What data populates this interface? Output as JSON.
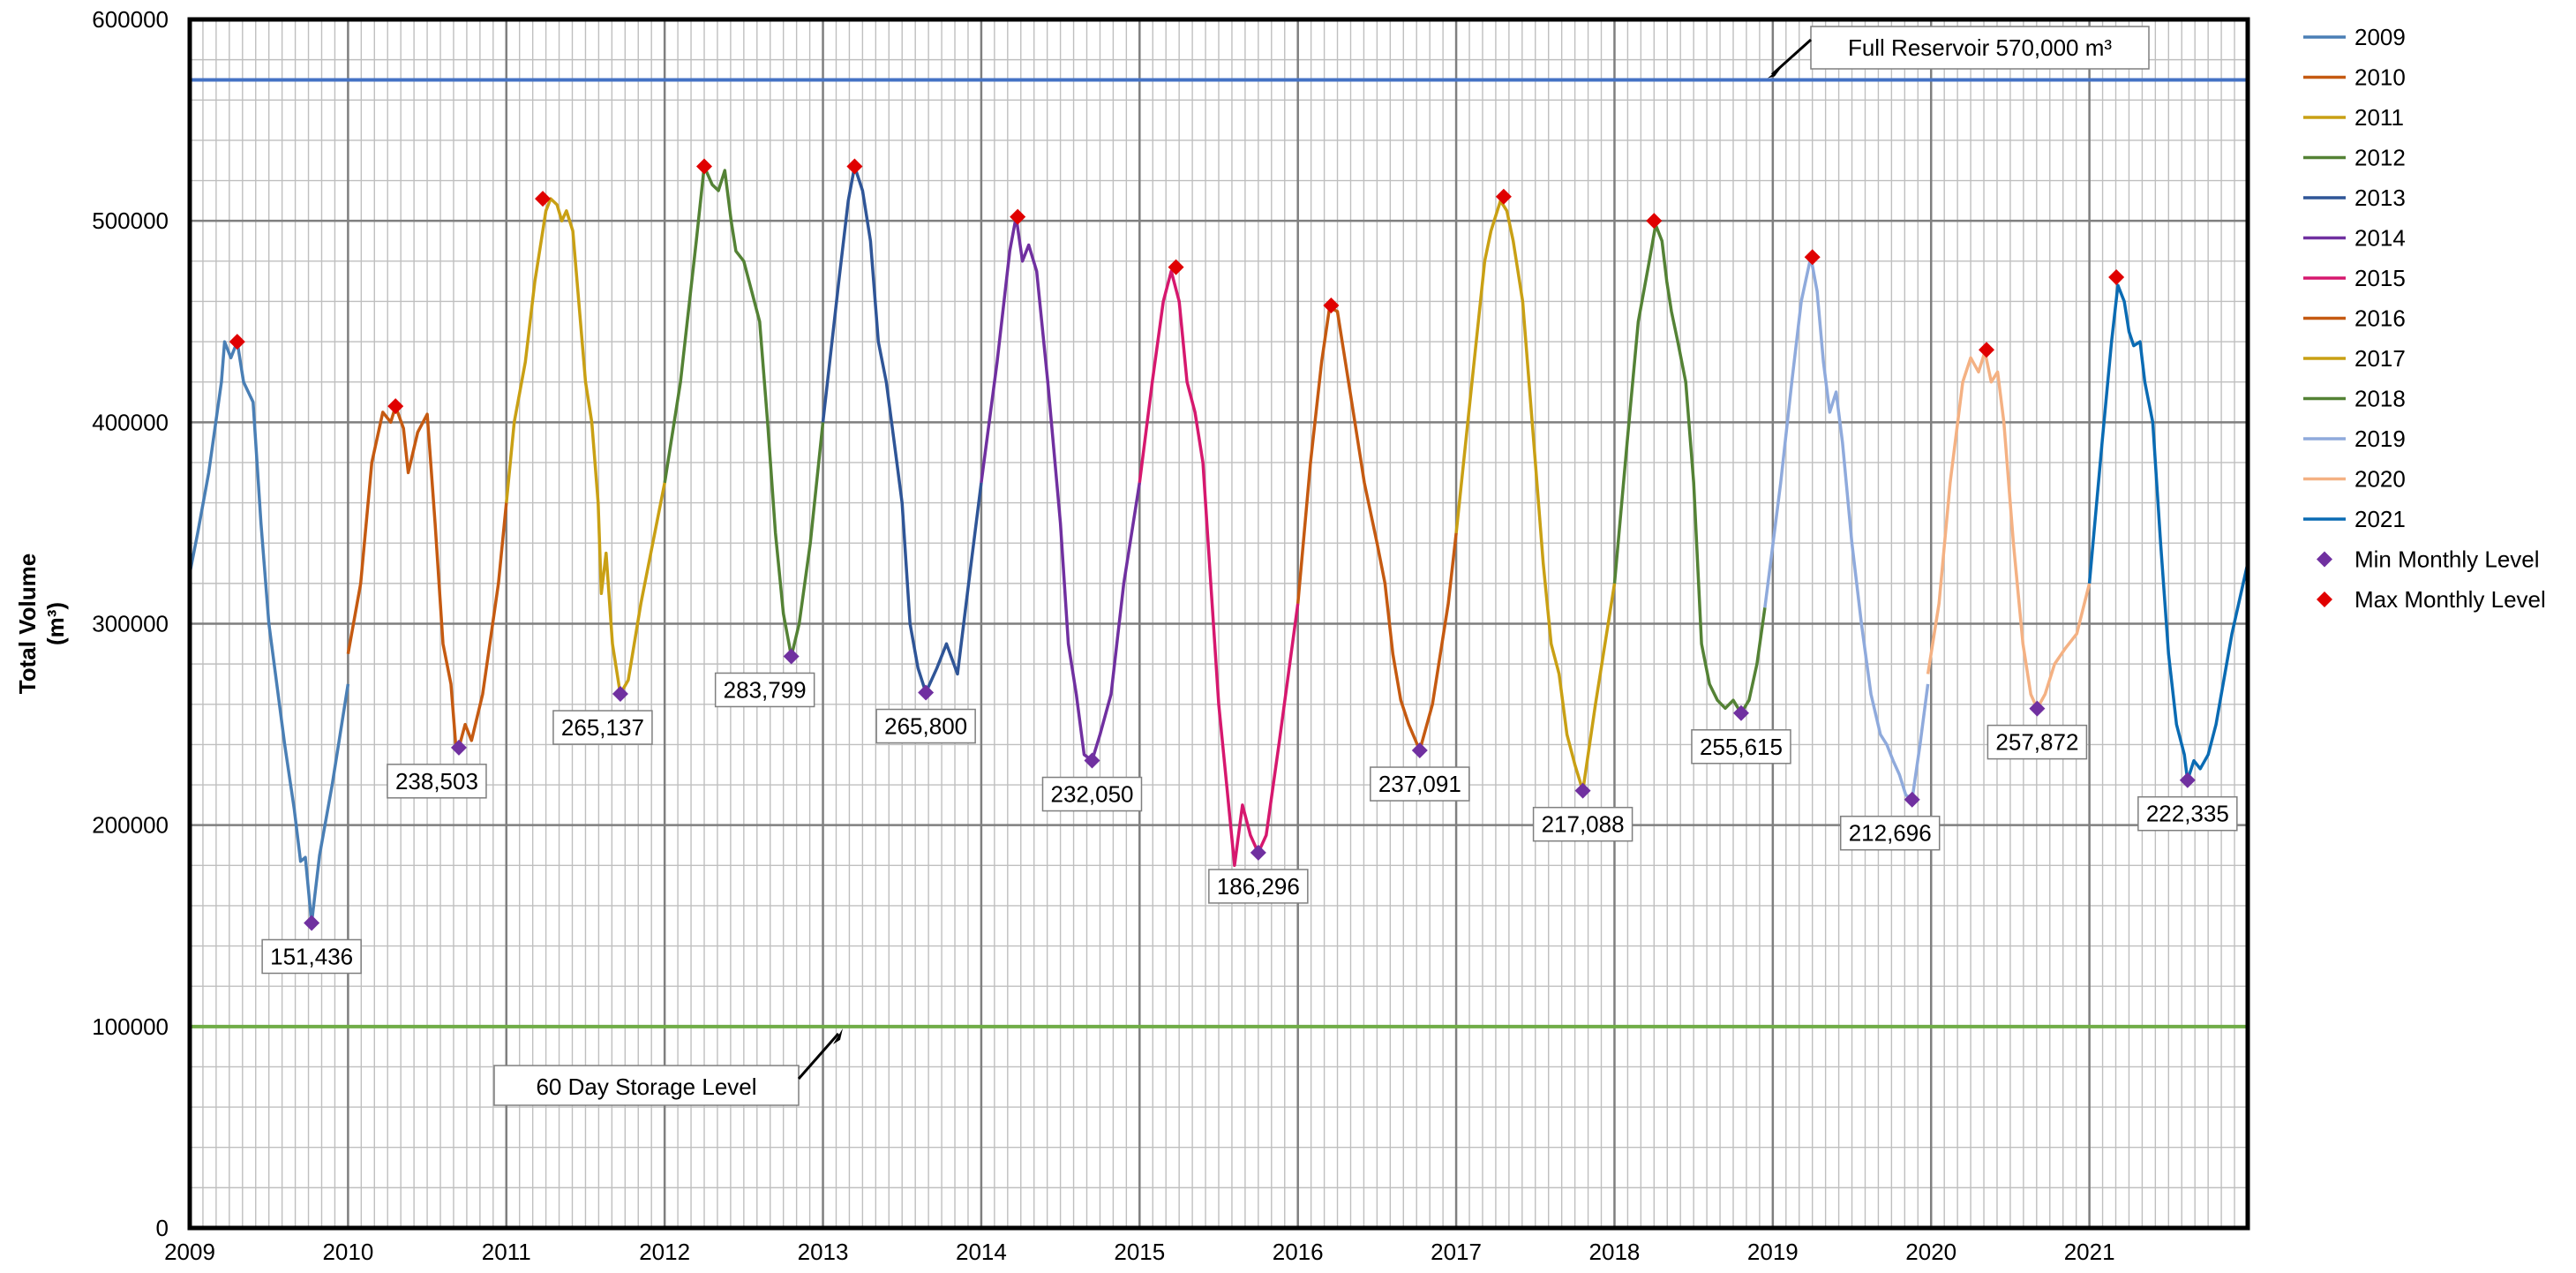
{
  "chart_data": {
    "type": "line",
    "title": "",
    "xlabel": "",
    "ylabel_line1": "Total Volume",
    "ylabel_line2": "(m³)",
    "xlim": [
      2009,
      2022
    ],
    "ylim": [
      0,
      600000
    ],
    "x_ticks": [
      2009,
      2010,
      2011,
      2012,
      2013,
      2014,
      2015,
      2016,
      2017,
      2018,
      2019,
      2020,
      2021
    ],
    "y_ticks": [
      0,
      100000,
      200000,
      300000,
      400000,
      500000,
      600000
    ],
    "grid": true,
    "legend_position": "right",
    "series": [
      {
        "name": "2009",
        "color": "#4a7fb5",
        "points": [
          [
            2009.0,
            325000
          ],
          [
            2009.05,
            345000
          ],
          [
            2009.12,
            375000
          ],
          [
            2009.2,
            420000
          ],
          [
            2009.22,
            440000
          ],
          [
            2009.26,
            432000
          ],
          [
            2009.3,
            440000
          ],
          [
            2009.34,
            420000
          ],
          [
            2009.4,
            410000
          ],
          [
            2009.45,
            350000
          ],
          [
            2009.5,
            300000
          ],
          [
            2009.6,
            240000
          ],
          [
            2009.66,
            208000
          ],
          [
            2009.7,
            182000
          ],
          [
            2009.73,
            184000
          ],
          [
            2009.77,
            151436
          ],
          [
            2009.82,
            185000
          ],
          [
            2009.9,
            220000
          ],
          [
            2010.0,
            270000
          ]
        ]
      },
      {
        "name": "2010",
        "color": "#c55a11",
        "points": [
          [
            2010.0,
            285000
          ],
          [
            2010.08,
            320000
          ],
          [
            2010.15,
            380000
          ],
          [
            2010.22,
            405000
          ],
          [
            2010.27,
            400000
          ],
          [
            2010.3,
            408000
          ],
          [
            2010.35,
            397000
          ],
          [
            2010.38,
            375000
          ],
          [
            2010.44,
            395000
          ],
          [
            2010.5,
            404000
          ],
          [
            2010.55,
            350000
          ],
          [
            2010.6,
            290000
          ],
          [
            2010.65,
            270000
          ],
          [
            2010.68,
            240000
          ],
          [
            2010.7,
            238503
          ],
          [
            2010.74,
            250000
          ],
          [
            2010.78,
            242000
          ],
          [
            2010.85,
            265000
          ],
          [
            2010.95,
            320000
          ],
          [
            2011.0,
            360000
          ]
        ]
      },
      {
        "name": "2011",
        "color": "#c9a014",
        "points": [
          [
            2011.0,
            360000
          ],
          [
            2011.05,
            400000
          ],
          [
            2011.12,
            430000
          ],
          [
            2011.18,
            470000
          ],
          [
            2011.25,
            505000
          ],
          [
            2011.28,
            511000
          ],
          [
            2011.32,
            508000
          ],
          [
            2011.35,
            500000
          ],
          [
            2011.38,
            505000
          ],
          [
            2011.42,
            495000
          ],
          [
            2011.5,
            420000
          ],
          [
            2011.54,
            400000
          ],
          [
            2011.58,
            360000
          ],
          [
            2011.6,
            315000
          ],
          [
            2011.63,
            335000
          ],
          [
            2011.67,
            290000
          ],
          [
            2011.72,
            265137
          ],
          [
            2011.77,
            272000
          ],
          [
            2011.85,
            310000
          ],
          [
            2011.95,
            350000
          ],
          [
            2012.0,
            370000
          ]
        ]
      },
      {
        "name": "2012",
        "color": "#548235",
        "points": [
          [
            2012.0,
            370000
          ],
          [
            2012.1,
            420000
          ],
          [
            2012.2,
            490000
          ],
          [
            2012.25,
            527000
          ],
          [
            2012.3,
            518000
          ],
          [
            2012.34,
            515000
          ],
          [
            2012.38,
            525000
          ],
          [
            2012.42,
            500000
          ],
          [
            2012.45,
            485000
          ],
          [
            2012.5,
            480000
          ],
          [
            2012.55,
            465000
          ],
          [
            2012.6,
            450000
          ],
          [
            2012.65,
            400000
          ],
          [
            2012.7,
            345000
          ],
          [
            2012.75,
            305000
          ],
          [
            2012.8,
            283799
          ],
          [
            2012.85,
            300000
          ],
          [
            2012.92,
            340000
          ],
          [
            2013.0,
            400000
          ]
        ]
      },
      {
        "name": "2013",
        "color": "#2f5597",
        "points": [
          [
            2013.0,
            400000
          ],
          [
            2013.1,
            470000
          ],
          [
            2013.16,
            510000
          ],
          [
            2013.2,
            527000
          ],
          [
            2013.25,
            515000
          ],
          [
            2013.3,
            490000
          ],
          [
            2013.35,
            440000
          ],
          [
            2013.4,
            420000
          ],
          [
            2013.45,
            390000
          ],
          [
            2013.5,
            360000
          ],
          [
            2013.55,
            300000
          ],
          [
            2013.6,
            278000
          ],
          [
            2013.65,
            265800
          ],
          [
            2013.72,
            278000
          ],
          [
            2013.78,
            290000
          ],
          [
            2013.85,
            275000
          ],
          [
            2013.92,
            320000
          ],
          [
            2014.0,
            370000
          ]
        ]
      },
      {
        "name": "2014",
        "color": "#7030a0",
        "points": [
          [
            2014.0,
            370000
          ],
          [
            2014.1,
            430000
          ],
          [
            2014.18,
            485000
          ],
          [
            2014.22,
            502000
          ],
          [
            2014.26,
            480000
          ],
          [
            2014.3,
            488000
          ],
          [
            2014.35,
            475000
          ],
          [
            2014.42,
            420000
          ],
          [
            2014.5,
            350000
          ],
          [
            2014.55,
            290000
          ],
          [
            2014.6,
            265000
          ],
          [
            2014.65,
            235000
          ],
          [
            2014.7,
            232050
          ],
          [
            2014.75,
            245000
          ],
          [
            2014.82,
            265000
          ],
          [
            2014.9,
            320000
          ],
          [
            2015.0,
            370000
          ]
        ]
      },
      {
        "name": "2015",
        "color": "#d6186e",
        "points": [
          [
            2015.0,
            370000
          ],
          [
            2015.08,
            420000
          ],
          [
            2015.15,
            460000
          ],
          [
            2015.2,
            475000
          ],
          [
            2015.25,
            460000
          ],
          [
            2015.3,
            420000
          ],
          [
            2015.35,
            405000
          ],
          [
            2015.4,
            380000
          ],
          [
            2015.45,
            320000
          ],
          [
            2015.5,
            260000
          ],
          [
            2015.55,
            220000
          ],
          [
            2015.6,
            180000
          ],
          [
            2015.65,
            210000
          ],
          [
            2015.7,
            195000
          ],
          [
            2015.75,
            186296
          ],
          [
            2015.8,
            195000
          ],
          [
            2015.88,
            240000
          ],
          [
            2016.0,
            310000
          ]
        ]
      },
      {
        "name": "2016",
        "color": "#c55a11",
        "points": [
          [
            2016.0,
            310000
          ],
          [
            2016.08,
            380000
          ],
          [
            2016.15,
            430000
          ],
          [
            2016.2,
            457000
          ],
          [
            2016.25,
            455000
          ],
          [
            2016.3,
            430000
          ],
          [
            2016.35,
            405000
          ],
          [
            2016.42,
            370000
          ],
          [
            2016.5,
            340000
          ],
          [
            2016.55,
            320000
          ],
          [
            2016.6,
            285000
          ],
          [
            2016.65,
            262000
          ],
          [
            2016.7,
            250000
          ],
          [
            2016.77,
            237091
          ],
          [
            2016.85,
            260000
          ],
          [
            2016.95,
            310000
          ],
          [
            2017.0,
            345000
          ]
        ]
      },
      {
        "name": "2017",
        "color": "#c9a014",
        "points": [
          [
            2017.0,
            345000
          ],
          [
            2017.1,
            420000
          ],
          [
            2017.18,
            480000
          ],
          [
            2017.22,
            495000
          ],
          [
            2017.28,
            510000
          ],
          [
            2017.32,
            505000
          ],
          [
            2017.36,
            490000
          ],
          [
            2017.42,
            460000
          ],
          [
            2017.5,
            380000
          ],
          [
            2017.55,
            330000
          ],
          [
            2017.6,
            290000
          ],
          [
            2017.65,
            275000
          ],
          [
            2017.7,
            245000
          ],
          [
            2017.75,
            230000
          ],
          [
            2017.8,
            217088
          ],
          [
            2017.88,
            260000
          ],
          [
            2018.0,
            320000
          ]
        ]
      },
      {
        "name": "2018",
        "color": "#548235",
        "points": [
          [
            2018.0,
            320000
          ],
          [
            2018.08,
            390000
          ],
          [
            2018.15,
            450000
          ],
          [
            2018.22,
            480000
          ],
          [
            2018.26,
            498000
          ],
          [
            2018.3,
            490000
          ],
          [
            2018.33,
            470000
          ],
          [
            2018.36,
            455000
          ],
          [
            2018.4,
            440000
          ],
          [
            2018.45,
            420000
          ],
          [
            2018.5,
            370000
          ],
          [
            2018.55,
            290000
          ],
          [
            2018.6,
            270000
          ],
          [
            2018.65,
            262000
          ],
          [
            2018.7,
            258000
          ],
          [
            2018.75,
            262000
          ],
          [
            2018.8,
            255615
          ],
          [
            2018.85,
            262000
          ],
          [
            2018.9,
            280000
          ],
          [
            2018.95,
            308000
          ]
        ]
      },
      {
        "name": "2019",
        "color": "#8faadc",
        "points": [
          [
            2018.95,
            308000
          ],
          [
            2019.05,
            370000
          ],
          [
            2019.12,
            420000
          ],
          [
            2019.18,
            460000
          ],
          [
            2019.24,
            482000
          ],
          [
            2019.28,
            465000
          ],
          [
            2019.32,
            430000
          ],
          [
            2019.36,
            405000
          ],
          [
            2019.4,
            415000
          ],
          [
            2019.44,
            390000
          ],
          [
            2019.5,
            340000
          ],
          [
            2019.56,
            300000
          ],
          [
            2019.62,
            265000
          ],
          [
            2019.68,
            245000
          ],
          [
            2019.72,
            240000
          ],
          [
            2019.76,
            232000
          ],
          [
            2019.8,
            225000
          ],
          [
            2019.84,
            215000
          ],
          [
            2019.88,
            212696
          ],
          [
            2019.93,
            240000
          ],
          [
            2019.98,
            270000
          ]
        ]
      },
      {
        "name": "2020",
        "color": "#f4b183",
        "points": [
          [
            2019.98,
            275000
          ],
          [
            2020.05,
            310000
          ],
          [
            2020.12,
            370000
          ],
          [
            2020.2,
            420000
          ],
          [
            2020.25,
            432000
          ],
          [
            2020.3,
            425000
          ],
          [
            2020.34,
            435000
          ],
          [
            2020.38,
            420000
          ],
          [
            2020.42,
            425000
          ],
          [
            2020.46,
            400000
          ],
          [
            2020.52,
            340000
          ],
          [
            2020.58,
            290000
          ],
          [
            2020.63,
            265000
          ],
          [
            2020.67,
            257872
          ],
          [
            2020.72,
            265000
          ],
          [
            2020.78,
            280000
          ],
          [
            2020.85,
            288000
          ],
          [
            2020.92,
            295000
          ],
          [
            2021.0,
            320000
          ]
        ]
      },
      {
        "name": "2021",
        "color": "#0a6bb3",
        "points": [
          [
            2021.0,
            320000
          ],
          [
            2021.08,
            390000
          ],
          [
            2021.14,
            440000
          ],
          [
            2021.18,
            468000
          ],
          [
            2021.22,
            460000
          ],
          [
            2021.25,
            445000
          ],
          [
            2021.28,
            438000
          ],
          [
            2021.32,
            440000
          ],
          [
            2021.35,
            420000
          ],
          [
            2021.4,
            400000
          ],
          [
            2021.45,
            340000
          ],
          [
            2021.5,
            285000
          ],
          [
            2021.55,
            250000
          ],
          [
            2021.6,
            235000
          ],
          [
            2021.62,
            222335
          ],
          [
            2021.66,
            232000
          ],
          [
            2021.7,
            228000
          ],
          [
            2021.75,
            235000
          ],
          [
            2021.8,
            250000
          ],
          [
            2021.9,
            295000
          ],
          [
            2022.0,
            330000
          ]
        ]
      }
    ],
    "min_points": [
      [
        2009.77,
        151436
      ],
      [
        2010.7,
        238503
      ],
      [
        2011.72,
        265137
      ],
      [
        2012.8,
        283799
      ],
      [
        2013.65,
        265800
      ],
      [
        2014.7,
        232050
      ],
      [
        2015.75,
        186296
      ],
      [
        2016.77,
        237091
      ],
      [
        2017.8,
        217088
      ],
      [
        2018.8,
        255615
      ],
      [
        2019.88,
        212696
      ],
      [
        2020.67,
        257872
      ],
      [
        2021.62,
        222335
      ]
    ],
    "min_labels": [
      "151,436",
      "238,503",
      "265,137",
      "283,799",
      "265,800",
      "232,050",
      "186,296",
      "237,091",
      "217,088",
      "255,615",
      "212,696",
      "257,872",
      "222,335"
    ],
    "max_points": [
      [
        2009.3,
        440000
      ],
      [
        2010.3,
        408000
      ],
      [
        2011.23,
        511000
      ],
      [
        2012.25,
        527000
      ],
      [
        2013.2,
        527000
      ],
      [
        2014.23,
        502000
      ],
      [
        2015.23,
        477000
      ],
      [
        2016.21,
        458000
      ],
      [
        2017.3,
        512000
      ],
      [
        2018.25,
        500000
      ],
      [
        2019.25,
        482000
      ],
      [
        2020.35,
        436000
      ],
      [
        2021.17,
        472000
      ]
    ],
    "full_reservoir": {
      "value": 570000,
      "label": "Full Reservoir 570,000 m³",
      "color": "#4472c4"
    },
    "storage_60_day": {
      "value": 100000,
      "label": "60 Day Storage Level",
      "color": "#70ad47"
    },
    "min_marker": {
      "label": "Min Monthly Level",
      "color": "#7030a0"
    },
    "max_marker": {
      "label": "Max Monthly Level",
      "color": "#e00000"
    }
  }
}
